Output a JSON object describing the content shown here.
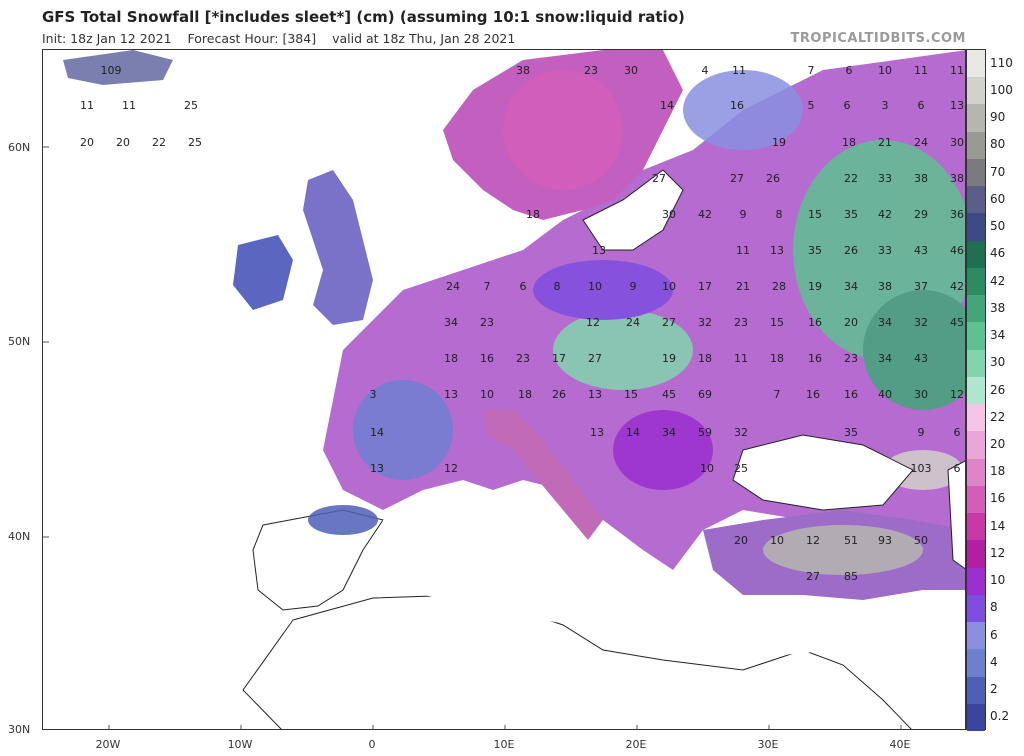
{
  "header": {
    "title": "GFS Total Snowfall [*includes sleet*] (cm) (assuming 10:1 snow:liquid ratio)",
    "init": "Init: 18z Jan 12 2021",
    "forecast_hour": "Forecast Hour: [384]",
    "valid": "valid at 18z Thu, Jan 28 2021",
    "brand": "TROPICALTIDBITS.COM"
  },
  "axes": {
    "lat_labels": [
      "60N",
      "50N",
      "40N",
      "30N"
    ],
    "lon_labels": [
      "20W",
      "10W",
      "0",
      "10E",
      "20E",
      "30E",
      "40E"
    ]
  },
  "colorbar": {
    "labels": [
      "110",
      "100",
      "90",
      "80",
      "70",
      "60",
      "50",
      "46",
      "42",
      "38",
      "34",
      "30",
      "26",
      "22",
      "20",
      "18",
      "16",
      "14",
      "12",
      "10",
      "8",
      "6",
      "4",
      "2",
      "0.2"
    ],
    "colors": [
      "#e8e8e4",
      "#d2d2cc",
      "#b6b6b0",
      "#9a9a94",
      "#7a7a80",
      "#5a5f8a",
      "#3e4a86",
      "#1f6f52",
      "#2e8a63",
      "#43a67a",
      "#5fc091",
      "#83d4ad",
      "#b0e6cf",
      "#f3c6e6",
      "#eaa6d8",
      "#df84c8",
      "#d35eb8",
      "#c63aa8",
      "#b21fa0",
      "#9b2fd0",
      "#7e4ee0",
      "#8a8fe0",
      "#6f7fd0",
      "#4e5fb6",
      "#3a45a0"
    ]
  },
  "map_values": [
    {
      "v": "109"
    },
    {
      "v": "38"
    },
    {
      "v": "23"
    },
    {
      "v": "30"
    },
    {
      "v": "4"
    },
    {
      "v": "11"
    },
    {
      "v": "7"
    },
    {
      "v": "6"
    },
    {
      "v": "10"
    },
    {
      "v": "11"
    },
    {
      "v": "11"
    },
    {
      "v": "11"
    },
    {
      "v": "11"
    },
    {
      "v": "25"
    },
    {
      "v": "14"
    },
    {
      "v": "16"
    },
    {
      "v": "5"
    },
    {
      "v": "6"
    },
    {
      "v": "3"
    },
    {
      "v": "6"
    },
    {
      "v": "13"
    },
    {
      "v": "20"
    },
    {
      "v": "20"
    },
    {
      "v": "22"
    },
    {
      "v": "25"
    },
    {
      "v": "19"
    },
    {
      "v": "18"
    },
    {
      "v": "21"
    },
    {
      "v": "24"
    },
    {
      "v": "30"
    },
    {
      "v": "27"
    },
    {
      "v": "27"
    },
    {
      "v": "26"
    },
    {
      "v": "22"
    },
    {
      "v": "33"
    },
    {
      "v": "38"
    },
    {
      "v": "38"
    },
    {
      "v": "30"
    },
    {
      "v": "42"
    },
    {
      "v": "9"
    },
    {
      "v": "8"
    },
    {
      "v": "15"
    },
    {
      "v": "35"
    },
    {
      "v": "42"
    },
    {
      "v": "29"
    },
    {
      "v": "36"
    },
    {
      "v": "18"
    },
    {
      "v": "13"
    },
    {
      "v": "11"
    },
    {
      "v": "13"
    },
    {
      "v": "35"
    },
    {
      "v": "26"
    },
    {
      "v": "33"
    },
    {
      "v": "43"
    },
    {
      "v": "46"
    },
    {
      "v": "24"
    },
    {
      "v": "7"
    },
    {
      "v": "6"
    },
    {
      "v": "8"
    },
    {
      "v": "10"
    },
    {
      "v": "9"
    },
    {
      "v": "10"
    },
    {
      "v": "17"
    },
    {
      "v": "21"
    },
    {
      "v": "28"
    },
    {
      "v": "19"
    },
    {
      "v": "34"
    },
    {
      "v": "38"
    },
    {
      "v": "37"
    },
    {
      "v": "42"
    },
    {
      "v": "34"
    },
    {
      "v": "23"
    },
    {
      "v": "12"
    },
    {
      "v": "24"
    },
    {
      "v": "27"
    },
    {
      "v": "32"
    },
    {
      "v": "23"
    },
    {
      "v": "15"
    },
    {
      "v": "16"
    },
    {
      "v": "20"
    },
    {
      "v": "34"
    },
    {
      "v": "32"
    },
    {
      "v": "45"
    },
    {
      "v": "18"
    },
    {
      "v": "16"
    },
    {
      "v": "23"
    },
    {
      "v": "17"
    },
    {
      "v": "27"
    },
    {
      "v": "19"
    },
    {
      "v": "18"
    },
    {
      "v": "11"
    },
    {
      "v": "18"
    },
    {
      "v": "16"
    },
    {
      "v": "23"
    },
    {
      "v": "34"
    },
    {
      "v": "43"
    },
    {
      "v": "3"
    },
    {
      "v": "13"
    },
    {
      "v": "10"
    },
    {
      "v": "18"
    },
    {
      "v": "26"
    },
    {
      "v": "13"
    },
    {
      "v": "15"
    },
    {
      "v": "45"
    },
    {
      "v": "69"
    },
    {
      "v": "7"
    },
    {
      "v": "16"
    },
    {
      "v": "16"
    },
    {
      "v": "40"
    },
    {
      "v": "30"
    },
    {
      "v": "12"
    },
    {
      "v": "14"
    },
    {
      "v": "13"
    },
    {
      "v": "14"
    },
    {
      "v": "34"
    },
    {
      "v": "59"
    },
    {
      "v": "32"
    },
    {
      "v": "35"
    },
    {
      "v": "9"
    },
    {
      "v": "6"
    },
    {
      "v": "13"
    },
    {
      "v": "12"
    },
    {
      "v": "10"
    },
    {
      "v": "25"
    },
    {
      "v": "103"
    },
    {
      "v": "6"
    },
    {
      "v": "20"
    },
    {
      "v": "10"
    },
    {
      "v": "12"
    },
    {
      "v": "51"
    },
    {
      "v": "93"
    },
    {
      "v": "50"
    },
    {
      "v": "27"
    },
    {
      "v": "85"
    }
  ]
}
